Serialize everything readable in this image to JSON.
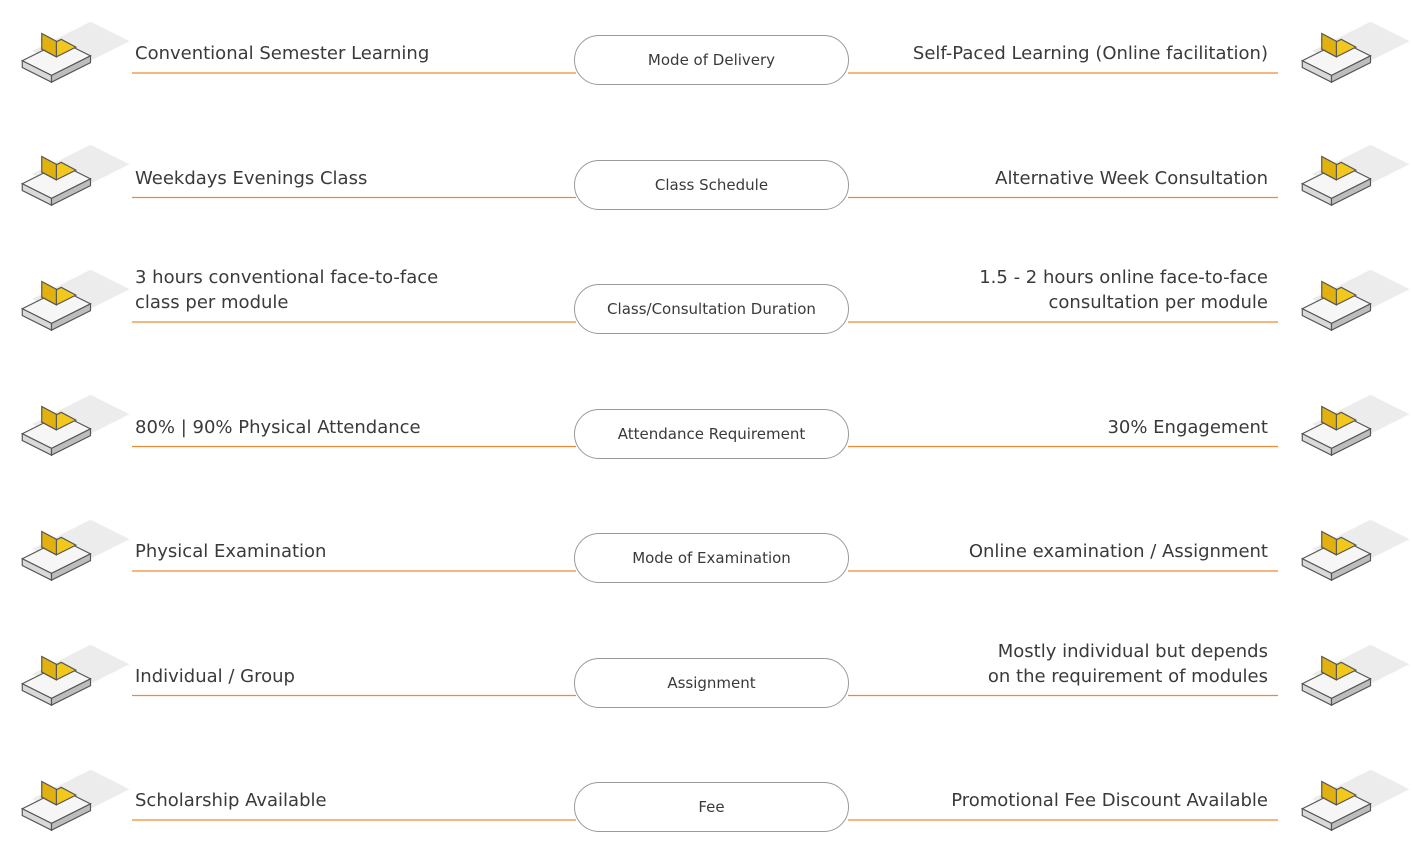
{
  "rows": [
    {
      "left": [
        "Conventional Semester Learning"
      ],
      "label": "Mode of Delivery",
      "right": [
        "Self-Paced Learning (Online facilitation)"
      ]
    },
    {
      "left": [
        "Weekdays Evenings Class"
      ],
      "label": "Class Schedule",
      "right": [
        "Alternative Week Consultation"
      ]
    },
    {
      "left": [
        "3 hours conventional face-to-face",
        "class per module"
      ],
      "label": "Class/Consultation Duration",
      "right": [
        "1.5 - 2 hours online face-to-face",
        "consultation per module"
      ]
    },
    {
      "left": [
        "80% | 90% Physical Attendance"
      ],
      "label": "Attendance Requirement",
      "right": [
        "30% Engagement"
      ]
    },
    {
      "left": [
        "Physical Examination"
      ],
      "label": "Mode of Examination",
      "right": [
        "Online examination / Assignment"
      ]
    },
    {
      "left": [
        "Individual / Group"
      ],
      "label": "Assignment",
      "right": [
        "Mostly individual but depends",
        "on the requirement of modules"
      ]
    },
    {
      "left": [
        "Scholarship Available"
      ],
      "label": "Fee",
      "right": [
        "Promotional Fee Discount Available"
      ]
    }
  ]
}
